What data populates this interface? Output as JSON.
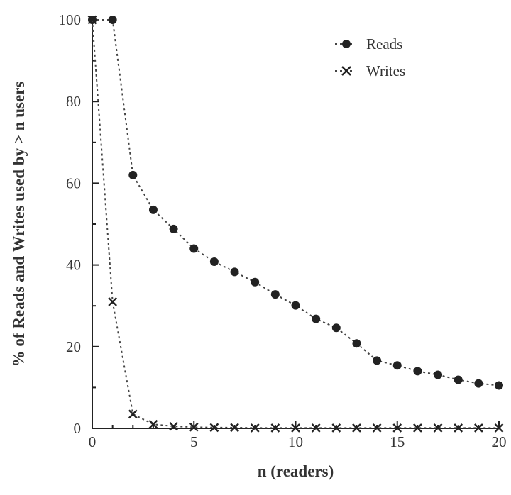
{
  "chart_data": {
    "type": "line",
    "xlabel": "n (readers)",
    "ylabel": "% of Reads and Writes used by > n users",
    "xlim": [
      0,
      20
    ],
    "ylim": [
      0,
      100
    ],
    "xticks": [
      "0",
      "5",
      "10",
      "15",
      "20"
    ],
    "yticks": [
      "0",
      "20",
      "40",
      "60",
      "80",
      "100"
    ],
    "grid": false,
    "legend_position": "top-right",
    "series": [
      {
        "name": "Reads",
        "marker": "circle",
        "x": [
          0,
          1,
          2,
          3,
          4,
          5,
          6,
          7,
          8,
          9,
          10,
          11,
          12,
          13,
          14,
          15,
          16,
          17,
          18,
          19,
          20
        ],
        "values": [
          100,
          100,
          62,
          53.5,
          48.8,
          44,
          40.8,
          38.3,
          35.8,
          32.8,
          30.1,
          26.8,
          24.6,
          20.8,
          16.6,
          15.4,
          14,
          13.1,
          11.9,
          11,
          10.5
        ]
      },
      {
        "name": "Writes",
        "marker": "x",
        "x": [
          0,
          1,
          2,
          3,
          4,
          5,
          6,
          7,
          8,
          9,
          10,
          11,
          12,
          13,
          14,
          15,
          16,
          17,
          18,
          19,
          20
        ],
        "values": [
          100,
          31,
          3.5,
          1,
          0.5,
          0.3,
          0.2,
          0.2,
          0.1,
          0.1,
          0.1,
          0.1,
          0.1,
          0.1,
          0.1,
          0.1,
          0.1,
          0.1,
          0.1,
          0.1,
          0.1
        ]
      }
    ]
  }
}
